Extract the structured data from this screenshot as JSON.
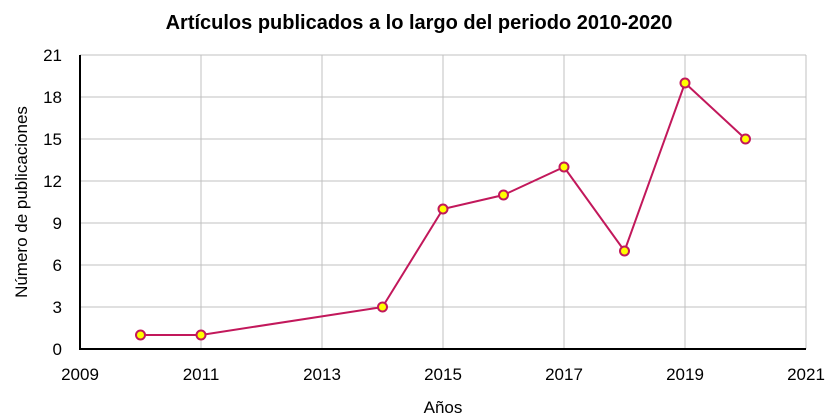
{
  "chart_data": {
    "type": "line",
    "title": "Artículos publicados a lo largo del periodo 2010-2020",
    "xlabel": "Años",
    "ylabel": "Número de publicaciones",
    "x": [
      2010,
      2011,
      2014,
      2015,
      2016,
      2017,
      2018,
      2019,
      2020
    ],
    "series": [
      {
        "name": "Número de publicaciones",
        "values": [
          1,
          1,
          3,
          10,
          11,
          13,
          7,
          19,
          15
        ]
      }
    ],
    "xlim": [
      2009,
      2021
    ],
    "ylim": [
      0,
      21
    ],
    "xticks": [
      2009,
      2011,
      2013,
      2015,
      2017,
      2019,
      2021
    ],
    "yticks": [
      0,
      3,
      6,
      9,
      12,
      15,
      18,
      21
    ],
    "grid": true,
    "legend": "none",
    "colors": {
      "line": "#c2185b",
      "marker_fill": "#ffff00",
      "marker_edge": "#c2185b",
      "grid": "#c0c0c0",
      "axis": "#000000"
    }
  }
}
